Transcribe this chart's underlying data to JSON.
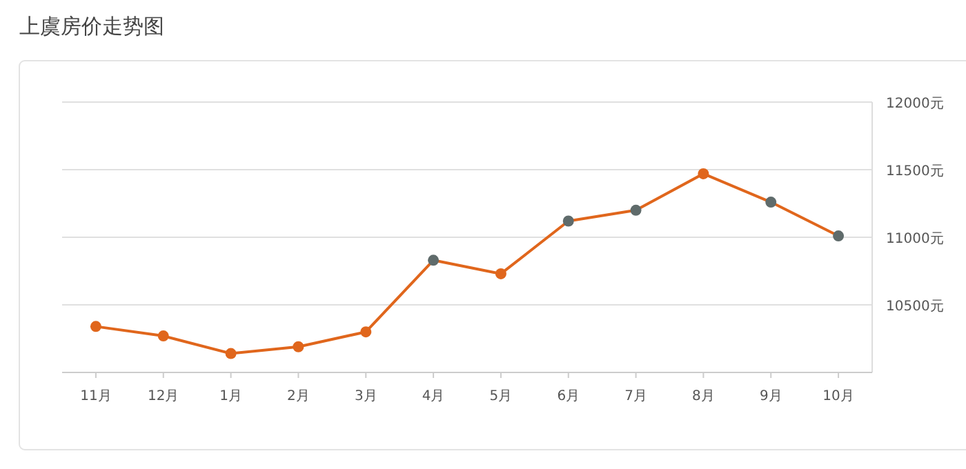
{
  "chart_data": {
    "type": "line",
    "title": "上虞房价走势图",
    "categories": [
      "11月",
      "12月",
      "1月",
      "2月",
      "3月",
      "4月",
      "5月",
      "6月",
      "7月",
      "8月",
      "9月",
      "10月"
    ],
    "series": [
      {
        "color": "#e0661c",
        "colors": [
          "#e0661c",
          "#e0661c",
          "#e0661c",
          "#e0661c",
          "#e0661c",
          "#5f6b6b",
          "#e0661c",
          "#5f6b6b",
          "#5f6b6b",
          "#e0661c",
          "#5f6b6b",
          "#5f6b6b"
        ],
        "values": [
          10340,
          10270,
          10140,
          10190,
          10300,
          10830,
          10730,
          11120,
          11200,
          11470,
          11260,
          11010
        ]
      }
    ],
    "ylim": [
      10000,
      12000
    ],
    "yticks": [
      {
        "value": 10000,
        "label": null
      },
      {
        "value": 10500,
        "label": "10500元"
      },
      {
        "value": 11000,
        "label": "11000元"
      },
      {
        "value": 11500,
        "label": "11500元"
      },
      {
        "value": 12000,
        "label": "12000元"
      }
    ],
    "grid": "y",
    "marker": "circle",
    "line_style": "solid"
  }
}
